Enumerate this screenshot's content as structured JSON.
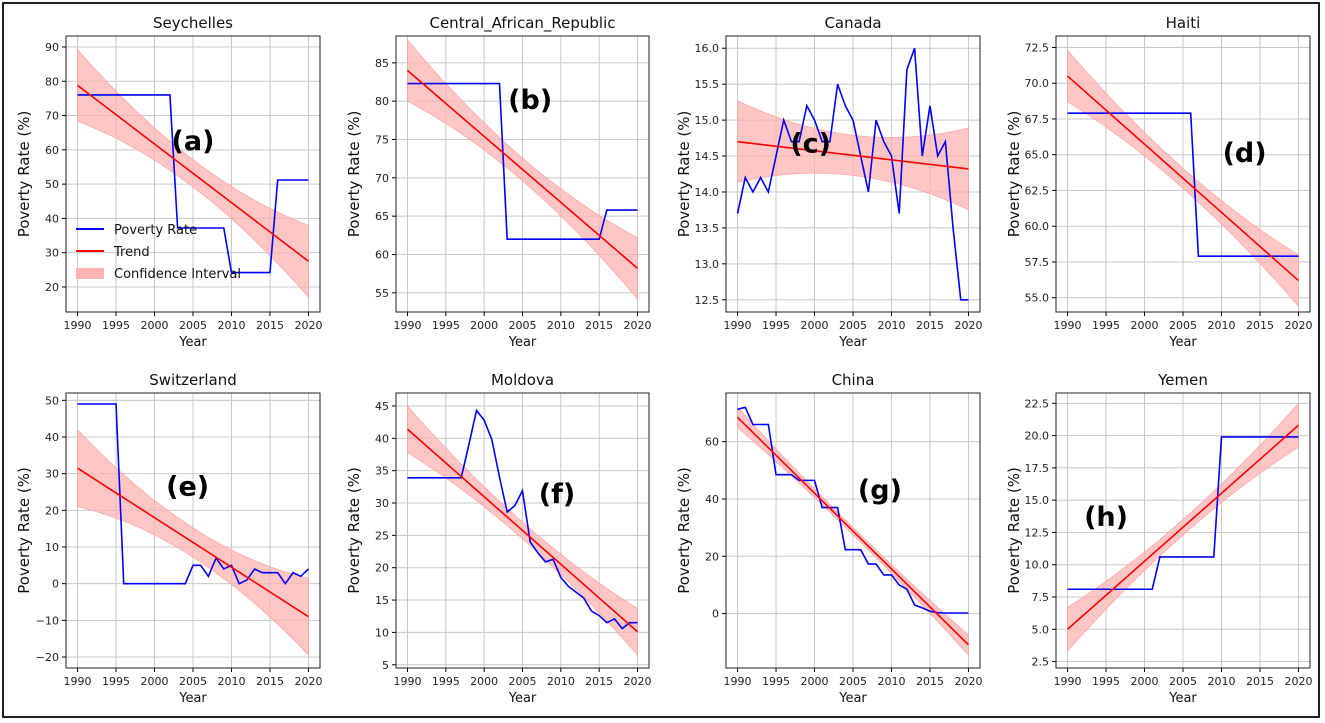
{
  "chart_data": [
    {
      "type": "line",
      "panel_label": "(a)",
      "title": "Seychelles",
      "xlabel": "Year",
      "ylabel": "Poverty Rate (%)",
      "xlim": [
        1988.5,
        2021.5
      ],
      "ylim": [
        12.7,
        93.2
      ],
      "xticks": [
        1990,
        1995,
        2000,
        2005,
        2010,
        2015,
        2020
      ],
      "yticks": [
        20,
        30,
        40,
        50,
        60,
        70,
        80,
        90
      ],
      "x_start": 1990,
      "series": [
        76,
        76,
        76,
        76,
        76,
        76,
        76,
        76,
        76,
        76,
        76,
        76,
        76,
        37.2,
        37.2,
        37.2,
        37.2,
        37.2,
        37.2,
        37.2,
        24.2,
        24.2,
        24.2,
        24.2,
        24.2,
        24.2,
        51.2,
        51.2,
        51.2,
        51.2,
        51.2
      ],
      "trend": [
        78.8,
        27.5
      ],
      "ci_halfwidth": [
        10.5,
        4,
        10.5
      ],
      "legend": {
        "placement": "lower-left",
        "entries": [
          "Poverty Rate",
          "Trend",
          "Confidence Interval"
        ]
      }
    },
    {
      "type": "line",
      "panel_label": "(b)",
      "title": "Central_African_Republic",
      "xlabel": "Year",
      "ylabel": "Poverty Rate (%)",
      "xlim": [
        1988.5,
        2021.5
      ],
      "ylim": [
        52.5,
        88.5
      ],
      "xticks": [
        1990,
        1995,
        2000,
        2005,
        2010,
        2015,
        2020
      ],
      "yticks": [
        55,
        60,
        65,
        70,
        75,
        80,
        85
      ],
      "x_start": 1990,
      "series": [
        82.3,
        82.3,
        82.3,
        82.3,
        82.3,
        82.3,
        82.3,
        82.3,
        82.3,
        82.3,
        82.3,
        82.3,
        82.3,
        62,
        62,
        62,
        62,
        62,
        62,
        62,
        62,
        62,
        62,
        62,
        62,
        62,
        65.8,
        65.8,
        65.8,
        65.8,
        65.8
      ],
      "trend": [
        84,
        58.2
      ],
      "ci_halfwidth": [
        4,
        1.5,
        4
      ]
    },
    {
      "type": "line",
      "panel_label": "(c)",
      "title": "Canada",
      "xlabel": "Year",
      "ylabel": "Poverty Rate (%)",
      "xlim": [
        1988.5,
        2021.5
      ],
      "ylim": [
        12.33,
        16.17
      ],
      "xticks": [
        1990,
        1995,
        2000,
        2005,
        2010,
        2015,
        2020
      ],
      "yticks": [
        12.5,
        13.0,
        13.5,
        14.0,
        14.5,
        15.0,
        15.5,
        16.0
      ],
      "x_start": 1990,
      "series": [
        13.7,
        14.2,
        14.0,
        14.2,
        14.0,
        14.5,
        15.0,
        14.7,
        14.7,
        15.2,
        15.0,
        14.7,
        14.7,
        15.5,
        15.2,
        15.0,
        14.5,
        14.0,
        15.0,
        14.7,
        14.5,
        13.7,
        15.7,
        16.0,
        14.5,
        15.2,
        14.5,
        14.7,
        13.5,
        12.5,
        12.5
      ],
      "trend": [
        14.7,
        14.32
      ],
      "ci_halfwidth": [
        0.57,
        0.28,
        0.57
      ]
    },
    {
      "type": "line",
      "panel_label": "(d)",
      "title": "Haiti",
      "xlabel": "Year",
      "ylabel": "Poverty Rate (%)",
      "xlim": [
        1988.5,
        2021.5
      ],
      "ylim": [
        54,
        73.3
      ],
      "xticks": [
        1990,
        1995,
        2000,
        2005,
        2010,
        2015,
        2020
      ],
      "yticks": [
        55.0,
        57.5,
        60.0,
        62.5,
        65.0,
        67.5,
        70.0,
        72.5
      ],
      "x_start": 1990,
      "series": [
        67.9,
        67.9,
        67.9,
        67.9,
        67.9,
        67.9,
        67.9,
        67.9,
        67.9,
        67.9,
        67.9,
        67.9,
        67.9,
        67.9,
        67.9,
        67.9,
        67.9,
        57.9,
        57.9,
        57.9,
        57.9,
        57.9,
        57.9,
        57.9,
        57.9,
        57.9,
        57.9,
        57.9,
        57.9,
        57.9,
        57.9
      ],
      "trend": [
        70.5,
        56.2
      ],
      "ci_halfwidth": [
        1.8,
        0.7,
        1.8
      ]
    },
    {
      "type": "line",
      "panel_label": "(e)",
      "title": "Switzerland",
      "xlabel": "Year",
      "ylabel": "Poverty Rate (%)",
      "xlim": [
        1988.5,
        2021.5
      ],
      "ylim": [
        -23,
        52
      ],
      "xticks": [
        1990,
        1995,
        2000,
        2005,
        2010,
        2015,
        2020
      ],
      "yticks": [
        -20,
        -10,
        0,
        10,
        20,
        30,
        40,
        50
      ],
      "x_start": 1990,
      "series": [
        49,
        49,
        49,
        49,
        49,
        49,
        0,
        0,
        0,
        0,
        0,
        0,
        0,
        0,
        0,
        5,
        5,
        2,
        7,
        4,
        5,
        0,
        1,
        4,
        3,
        3,
        3,
        0,
        3,
        2,
        4
      ],
      "trend": [
        31.5,
        -9
      ],
      "ci_halfwidth": [
        10.5,
        4,
        10.5
      ]
    },
    {
      "type": "line",
      "panel_label": "(f)",
      "title": "Moldova",
      "xlabel": "Year",
      "ylabel": "Poverty Rate (%)",
      "xlim": [
        1988.5,
        2021.5
      ],
      "ylim": [
        4.5,
        47
      ],
      "xticks": [
        1990,
        1995,
        2000,
        2005,
        2010,
        2015,
        2020
      ],
      "yticks": [
        5,
        10,
        15,
        20,
        25,
        30,
        35,
        40,
        45
      ],
      "x_start": 1990,
      "series": [
        33.9,
        33.9,
        33.9,
        33.9,
        33.9,
        33.9,
        33.9,
        33.9,
        39,
        44.3,
        42.8,
        39.8,
        34,
        28.6,
        29.6,
        31.9,
        24,
        22.3,
        20.9,
        21.3,
        18.5,
        17.1,
        16.2,
        15.3,
        13.3,
        12.6,
        11.5,
        12.1,
        10.6,
        11.5,
        11.5
      ],
      "trend": [
        41.4,
        10.1
      ],
      "ci_halfwidth": [
        3.6,
        1.3,
        3.6
      ]
    },
    {
      "type": "line",
      "panel_label": "(g)",
      "title": "China",
      "xlabel": "Year",
      "ylabel": "Poverty Rate (%)",
      "xlim": [
        1988.5,
        2021.5
      ],
      "ylim": [
        -19,
        77
      ],
      "xticks": [
        1990,
        1995,
        2000,
        2005,
        2010,
        2015,
        2020
      ],
      "yticks": [
        0,
        20,
        40,
        60
      ],
      "x_start": 1990,
      "series": [
        71.3,
        72,
        66,
        66,
        66,
        48.5,
        48.5,
        48.5,
        46.5,
        46.5,
        46.5,
        37,
        37,
        37,
        22.3,
        22.3,
        22.3,
        17.3,
        17.3,
        13.5,
        13.5,
        10,
        8.5,
        3,
        2,
        0.8,
        0.3,
        0.2,
        0.2,
        0.2,
        0.2
      ],
      "trend": [
        68.5,
        -10.9
      ],
      "ci_halfwidth": [
        3.5,
        1.3,
        3.5
      ]
    },
    {
      "type": "line",
      "panel_label": "(h)",
      "title": "Yemen",
      "xlabel": "Year",
      "ylabel": "Poverty Rate (%)",
      "xlim": [
        1988.5,
        2021.5
      ],
      "ylim": [
        2,
        23.3
      ],
      "xticks": [
        1990,
        1995,
        2000,
        2005,
        2010,
        2015,
        2020
      ],
      "yticks": [
        2.5,
        5.0,
        7.5,
        10.0,
        12.5,
        15.0,
        17.5,
        20.0,
        22.5
      ],
      "x_start": 1990,
      "series": [
        8.1,
        8.1,
        8.1,
        8.1,
        8.1,
        8.1,
        8.1,
        8.1,
        8.1,
        8.1,
        8.1,
        8.1,
        10.6,
        10.6,
        10.6,
        10.6,
        10.6,
        10.6,
        10.6,
        10.6,
        19.9,
        19.9,
        19.9,
        19.9,
        19.9,
        19.9,
        19.9,
        19.9,
        19.9,
        19.9,
        19.9
      ],
      "trend": [
        5,
        20.8
      ],
      "ci_halfwidth": [
        1.7,
        0.6,
        1.7
      ]
    }
  ],
  "colors": {
    "series": "#0000ff",
    "trend": "#ff0000",
    "ci": "#ffb3b3",
    "grid": "#c8c8c8"
  }
}
